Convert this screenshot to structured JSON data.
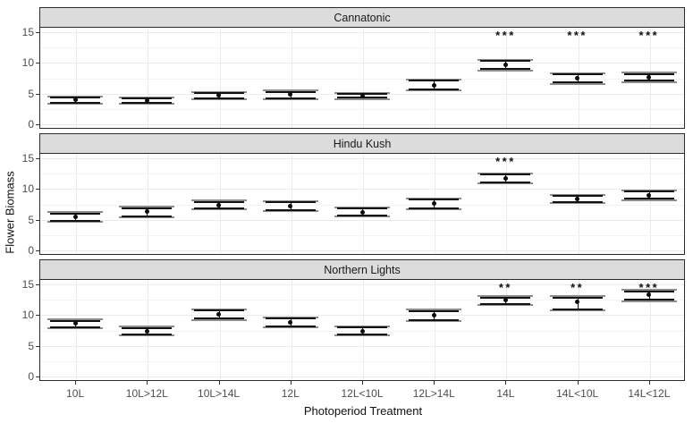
{
  "chart_data": {
    "type": "pointrange",
    "title": "",
    "xlabel": "Photoperiod Treatment",
    "ylabel": "Flower Biomass",
    "ylim": [
      -0.75,
      15.75
    ],
    "yticks": [
      0,
      5,
      10,
      15
    ],
    "yticks_minor": [
      2.5,
      7.5,
      12.5
    ],
    "grid": "on",
    "legend": "none",
    "categories": [
      "10L",
      "10L>12L",
      "10L>14L",
      "12L",
      "12L<10L",
      "12L>14L",
      "14L",
      "14L<10L",
      "14L<12L"
    ],
    "facets": [
      {
        "title": "Cannatonic",
        "means": [
          4.0,
          3.9,
          4.7,
          4.8,
          4.6,
          6.4,
          9.7,
          7.5,
          7.6
        ],
        "lower": [
          3.5,
          3.5,
          4.2,
          4.2,
          4.3,
          5.7,
          9.0,
          6.8,
          7.1
        ],
        "upper": [
          4.3,
          4.2,
          5.1,
          5.3,
          4.9,
          7.1,
          10.3,
          8.1,
          8.2
        ],
        "significance": [
          "",
          "",
          "",
          "",
          "",
          "",
          "***",
          "***",
          "***"
        ]
      },
      {
        "title": "Hindu Kush",
        "means": [
          5.4,
          6.3,
          7.4,
          7.2,
          6.2,
          7.7,
          11.7,
          8.4,
          9.0
        ],
        "lower": [
          4.8,
          5.6,
          6.9,
          6.6,
          5.7,
          6.9,
          11.1,
          7.9,
          8.4
        ],
        "upper": [
          6.0,
          6.9,
          7.9,
          7.8,
          6.8,
          8.3,
          12.4,
          8.9,
          9.6
        ],
        "significance": [
          "",
          "",
          "",
          "",
          "",
          "",
          "***",
          "",
          ""
        ]
      },
      {
        "title": "Northern Lights",
        "means": [
          8.6,
          7.4,
          10.1,
          8.8,
          7.4,
          10.0,
          12.4,
          12.1,
          13.3
        ],
        "lower": [
          8.0,
          6.9,
          9.4,
          8.2,
          6.9,
          9.2,
          11.8,
          11.0,
          12.5
        ],
        "upper": [
          9.1,
          7.9,
          10.8,
          9.4,
          8.0,
          10.7,
          12.9,
          12.9,
          13.9
        ],
        "significance": [
          "",
          "",
          "",
          "",
          "",
          "",
          "**",
          "**",
          "***"
        ]
      }
    ],
    "sig_y": 14.4,
    "colors": {
      "strip_bg": "#dcdcdc",
      "panel_border": "#2b2b2b",
      "grid_major": "#ebebeb",
      "grid_minor": "#f4f4f4",
      "point": "#0d0d0d",
      "interval_black": "#111111",
      "interval_gray": "#8d8d8d",
      "tick_text": "#4d4d4d",
      "title_text": "#111111"
    }
  }
}
